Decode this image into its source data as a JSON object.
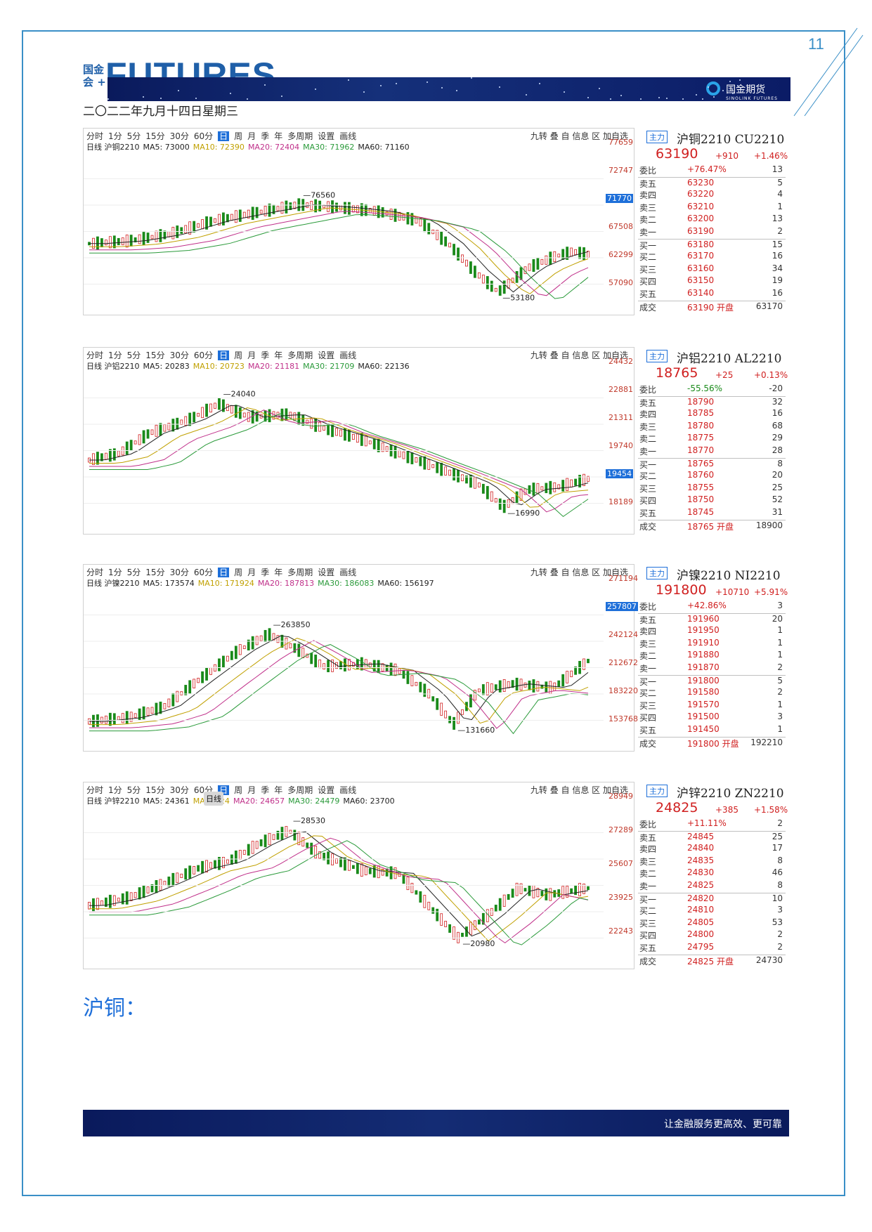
{
  "page_number": "11",
  "logo": {
    "small": "国金会 +",
    "big": "FUTURES"
  },
  "brand": {
    "name": "国金期货",
    "sub": "SINOLINK FUTURES"
  },
  "date": "二〇二二年九月十四日星期三",
  "toolbar_items": [
    "分时",
    "1分",
    "5分",
    "15分",
    "30分",
    "60分",
    "日",
    "周",
    "月",
    "季",
    "年",
    "多周期",
    "设置",
    "画线"
  ],
  "toolbar_right": "九转 叠 自 信息 区 加自选",
  "panels": [
    {
      "ma": {
        "prefix": "日线 沪铜2210",
        "m5": "MA5: 73000",
        "m10": "MA10: 72390",
        "m20": "MA20: 72404",
        "m30": "MA30: 71962",
        "m60": "MA60: 71160"
      },
      "yticks": [
        "77659",
        "72747",
        "71770",
        "67508",
        "62299",
        "57090"
      ],
      "high_label": "76560",
      "low_label": "53180",
      "quote": {
        "tag": "主力",
        "name": "沪铜2210 CU2210",
        "price": "63190",
        "change": "+910",
        "pct": "+1.46%",
        "rows": [
          {
            "lab": "委比",
            "pr": "+76.47%",
            "vol": "13",
            "col": "r"
          },
          {
            "lab": "卖五",
            "pr": "63230",
            "vol": "5",
            "col": "r"
          },
          {
            "lab": "卖四",
            "pr": "63220",
            "vol": "4",
            "col": "r"
          },
          {
            "lab": "卖三",
            "pr": "63210",
            "vol": "1",
            "col": "r"
          },
          {
            "lab": "卖二",
            "pr": "63200",
            "vol": "13",
            "col": "r"
          },
          {
            "lab": "卖一",
            "pr": "63190",
            "vol": "2",
            "col": "r"
          },
          {
            "lab": "买一",
            "pr": "63180",
            "vol": "15",
            "col": "r"
          },
          {
            "lab": "买二",
            "pr": "63170",
            "vol": "16",
            "col": "r"
          },
          {
            "lab": "买三",
            "pr": "63160",
            "vol": "34",
            "col": "r"
          },
          {
            "lab": "买四",
            "pr": "63150",
            "vol": "19",
            "col": "r"
          },
          {
            "lab": "买五",
            "pr": "63140",
            "vol": "16",
            "col": "r"
          },
          {
            "lab": "成交",
            "pr": "63190 开盘",
            "vol": "63170",
            "col": "r"
          }
        ]
      }
    },
    {
      "ma": {
        "prefix": "日线 沪铝2210",
        "m5": "MA5: 20283",
        "m10": "MA10: 20723",
        "m20": "MA20: 21181",
        "m30": "MA30: 21709",
        "m60": "MA60: 22136"
      },
      "yticks": [
        "24432",
        "22881",
        "21311",
        "19740",
        "19454",
        "18189"
      ],
      "high_label": "24040",
      "low_label": "16990",
      "quote": {
        "tag": "主力",
        "name": "沪铝2210 AL2210",
        "price": "18765",
        "change": "+25",
        "pct": "+0.13%",
        "rows": [
          {
            "lab": "委比",
            "pr": "-55.56%",
            "vol": "-20",
            "col": "g"
          },
          {
            "lab": "卖五",
            "pr": "18790",
            "vol": "32",
            "col": "r"
          },
          {
            "lab": "卖四",
            "pr": "18785",
            "vol": "16",
            "col": "r"
          },
          {
            "lab": "卖三",
            "pr": "18780",
            "vol": "68",
            "col": "r"
          },
          {
            "lab": "卖二",
            "pr": "18775",
            "vol": "29",
            "col": "r"
          },
          {
            "lab": "卖一",
            "pr": "18770",
            "vol": "28",
            "col": "r"
          },
          {
            "lab": "买一",
            "pr": "18765",
            "vol": "8",
            "col": "r"
          },
          {
            "lab": "买二",
            "pr": "18760",
            "vol": "20",
            "col": "r"
          },
          {
            "lab": "买三",
            "pr": "18755",
            "vol": "25",
            "col": "r"
          },
          {
            "lab": "买四",
            "pr": "18750",
            "vol": "52",
            "col": "r"
          },
          {
            "lab": "买五",
            "pr": "18745",
            "vol": "31",
            "col": "r"
          },
          {
            "lab": "成交",
            "pr": "18765 开盘",
            "vol": "18900",
            "col": "r"
          }
        ]
      }
    },
    {
      "ma": {
        "prefix": "日线 沪镍2210",
        "m5": "MA5: 173574",
        "m10": "MA10: 171924",
        "m20": "MA20: 187813",
        "m30": "MA30: 186083",
        "m60": "MA60: 156197"
      },
      "yticks": [
        "271194",
        "257807",
        "242124",
        "212672",
        "183220",
        "153768"
      ],
      "high_label": "263850",
      "low_label": "131660",
      "quote": {
        "tag": "主力",
        "name": "沪镍2210 NI2210",
        "price": "191800",
        "change": "+10710",
        "pct": "+5.91%",
        "rows": [
          {
            "lab": "委比",
            "pr": "+42.86%",
            "vol": "3",
            "col": "r"
          },
          {
            "lab": "卖五",
            "pr": "191960",
            "vol": "20",
            "col": "r"
          },
          {
            "lab": "卖四",
            "pr": "191950",
            "vol": "1",
            "col": "r"
          },
          {
            "lab": "卖三",
            "pr": "191910",
            "vol": "1",
            "col": "r"
          },
          {
            "lab": "卖二",
            "pr": "191880",
            "vol": "1",
            "col": "r"
          },
          {
            "lab": "卖一",
            "pr": "191870",
            "vol": "2",
            "col": "r"
          },
          {
            "lab": "买一",
            "pr": "191800",
            "vol": "5",
            "col": "r"
          },
          {
            "lab": "买二",
            "pr": "191580",
            "vol": "2",
            "col": "r"
          },
          {
            "lab": "买三",
            "pr": "191570",
            "vol": "1",
            "col": "r"
          },
          {
            "lab": "买四",
            "pr": "191500",
            "vol": "3",
            "col": "r"
          },
          {
            "lab": "买五",
            "pr": "191450",
            "vol": "1",
            "col": "r"
          },
          {
            "lab": "成交",
            "pr": "191800 开盘",
            "vol": "192210",
            "col": "r"
          }
        ]
      }
    },
    {
      "ma": {
        "prefix": "日线 沪锌2210",
        "m5": "MA5: 24361",
        "m10": "MA10: 24",
        "m20": "MA20: 24657",
        "m30": "MA30: 24479",
        "m60": "MA60: 23700"
      },
      "yticks": [
        "28949",
        "27289",
        "25607",
        "23925",
        "22243"
      ],
      "high_label": "28530",
      "low_label": "20980",
      "tooltip": "日线",
      "quote": {
        "tag": "主力",
        "name": "沪锌2210 ZN2210",
        "price": "24825",
        "change": "+385",
        "pct": "+1.58%",
        "rows": [
          {
            "lab": "委比",
            "pr": "+11.11%",
            "vol": "2",
            "col": "r"
          },
          {
            "lab": "卖五",
            "pr": "24845",
            "vol": "25",
            "col": "r"
          },
          {
            "lab": "卖四",
            "pr": "24840",
            "vol": "17",
            "col": "r"
          },
          {
            "lab": "卖三",
            "pr": "24835",
            "vol": "8",
            "col": "r"
          },
          {
            "lab": "卖二",
            "pr": "24830",
            "vol": "46",
            "col": "r"
          },
          {
            "lab": "卖一",
            "pr": "24825",
            "vol": "8",
            "col": "r"
          },
          {
            "lab": "买一",
            "pr": "24820",
            "vol": "10",
            "col": "r"
          },
          {
            "lab": "买二",
            "pr": "24810",
            "vol": "3",
            "col": "r"
          },
          {
            "lab": "买三",
            "pr": "24805",
            "vol": "53",
            "col": "r"
          },
          {
            "lab": "买四",
            "pr": "24800",
            "vol": "2",
            "col": "r"
          },
          {
            "lab": "买五",
            "pr": "24795",
            "vol": "2",
            "col": "r"
          },
          {
            "lab": "成交",
            "pr": "24825 开盘",
            "vol": "24730",
            "col": "r"
          }
        ]
      }
    }
  ],
  "section_title": "沪铜：",
  "slogan": "让金融服务更高效、更可靠"
}
